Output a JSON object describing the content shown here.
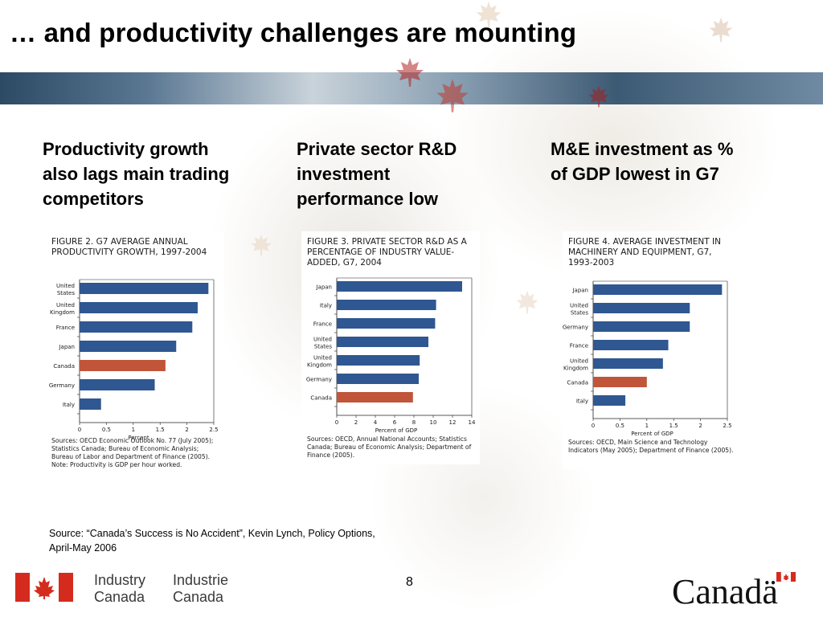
{
  "slide": {
    "title": "… and productivity challenges are mounting",
    "page_number": "8",
    "source_note": "Source: “Canada’s Success is No Accident”, Kevin Lynch, Policy Options, April-May 2006",
    "brand_colors": {
      "bar": "#2f5791",
      "highlight": "#c0553a",
      "band": "#3d5a74"
    }
  },
  "columns": [
    {
      "heading": "Productivity growth also lags main trading competitors"
    },
    {
      "heading": "Private sector R&D investment performance low"
    },
    {
      "heading": "M&E investment as % of GDP lowest in G7"
    }
  ],
  "footer": {
    "industry_en_1": "Industry",
    "industry_en_2": "Canada",
    "industry_fr_1": "Industrie",
    "industry_fr_2": "Canada",
    "wordmark": "Canadä"
  },
  "chart_data": [
    {
      "type": "bar",
      "orientation": "horizontal",
      "title": "FIGURE 2. G7 AVERAGE ANNUAL PRODUCTIVITY GROWTH, 1997-2004",
      "categories": [
        "United States",
        "United Kingdom",
        "France",
        "Japan",
        "Canada",
        "Germany",
        "Italy"
      ],
      "values": [
        2.4,
        2.2,
        2.1,
        1.8,
        1.6,
        1.4,
        0.4
      ],
      "highlight": "Canada",
      "xlabel": "Percent",
      "xlim": [
        0,
        2.5
      ],
      "xticks": [
        "0",
        "0.5",
        "1",
        "1.5",
        "2",
        "2.5"
      ],
      "sources": [
        "Sources: OECD Economic Outlook No. 77 (July 2005); Statistics Canada; Bureau of Economic Analysis; Bureau of Labor and Department of Finance (2005).",
        "Note: Productivity is GDP per hour worked."
      ]
    },
    {
      "type": "bar",
      "orientation": "horizontal",
      "title": "FIGURE 3. PRIVATE SECTOR R&D AS A PERCENTAGE OF INDUSTRY VALUE-ADDED, G7, 2004",
      "categories": [
        "Japan",
        "Italy",
        "France",
        "United States",
        "United Kingdom",
        "Germany",
        "Canada"
      ],
      "values": [
        13.0,
        10.3,
        10.2,
        9.5,
        8.6,
        8.5,
        7.9
      ],
      "highlight": "Canada",
      "xlabel": "Percent of GDP",
      "xlim": [
        0,
        14
      ],
      "xticks": [
        "0",
        "2",
        "4",
        "6",
        "8",
        "10",
        "12",
        "14"
      ],
      "sources": [
        "Sources: OECD, Annual National Accounts; Statistics Canada; Bureau of Economic Analysis; Department of Finance (2005)."
      ]
    },
    {
      "type": "bar",
      "orientation": "horizontal",
      "title": "FIGURE 4. AVERAGE INVESTMENT IN MACHINERY AND EQUIPMENT, G7, 1993-2003",
      "categories": [
        "Japan",
        "United States",
        "Germany",
        "France",
        "United Kingdom",
        "Canada",
        "Italy"
      ],
      "values": [
        2.4,
        1.8,
        1.8,
        1.4,
        1.3,
        1.0,
        0.6
      ],
      "highlight": "Canada",
      "xlabel": "Percent of GDP",
      "xlim": [
        0,
        2.5
      ],
      "xticks": [
        "0",
        "0.5",
        "1",
        "1.5",
        "2",
        "2.5"
      ],
      "sources": [
        "Sources: OECD, Main Science and Technology Indicators (May 2005); Department of Finance (2005)."
      ]
    }
  ]
}
